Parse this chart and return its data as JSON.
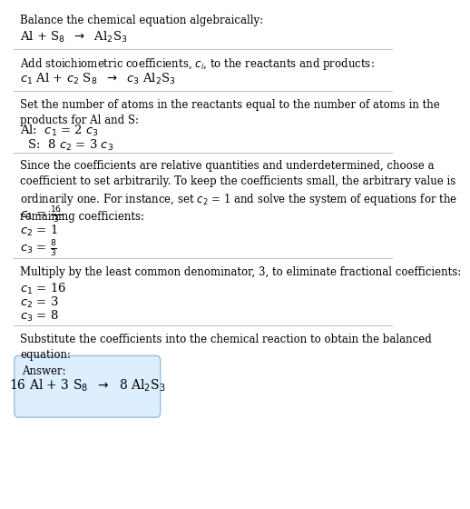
{
  "bg_color": "#ffffff",
  "text_color": "#000000",
  "answer_box_color": "#ddeeff",
  "answer_box_edge": "#99bbdd",
  "section1_title": "Balance the chemical equation algebraically:",
  "section1_eq": "Al + S$_8$  $\\rightarrow$  Al$_2$S$_3$",
  "section2_title": "Add stoichiometric coefficients, $c_i$, to the reactants and products:",
  "section2_eq": "$c_1$ Al + $c_2$ S$_8$  $\\rightarrow$  $c_3$ Al$_2$S$_3$",
  "section3_title": "Set the number of atoms in the reactants equal to the number of atoms in the\nproducts for Al and S:",
  "section3_al": "Al:  $c_1$ = 2 $c_3$",
  "section3_s": "  S:  8 $c_2$ = 3 $c_3$",
  "section4_title": "Since the coefficients are relative quantities and underdetermined, choose a\ncoefficient to set arbitrarily. To keep the coefficients small, the arbitrary value is\nordinarily one. For instance, set $c_2$ = 1 and solve the system of equations for the\nremaining coefficients:",
  "section4_c1": "$c_1$ = $\\frac{16}{3}$",
  "section4_c2": "$c_2$ = 1",
  "section4_c3": "$c_3$ = $\\frac{8}{3}$",
  "section5_title": "Multiply by the least common denominator, 3, to eliminate fractional coefficients:",
  "section5_c1": "$c_1$ = 16",
  "section5_c2": "$c_2$ = 3",
  "section5_c3": "$c_3$ = 8",
  "section6_title": "Substitute the coefficients into the chemical reaction to obtain the balanced\nequation:",
  "answer_label": "Answer:",
  "answer_eq": "16 Al + 3 S$_8$  $\\rightarrow$  8 Al$_2$S$_3$",
  "fs_body": 8.5,
  "fs_eq": 9.5,
  "lm": 0.018
}
